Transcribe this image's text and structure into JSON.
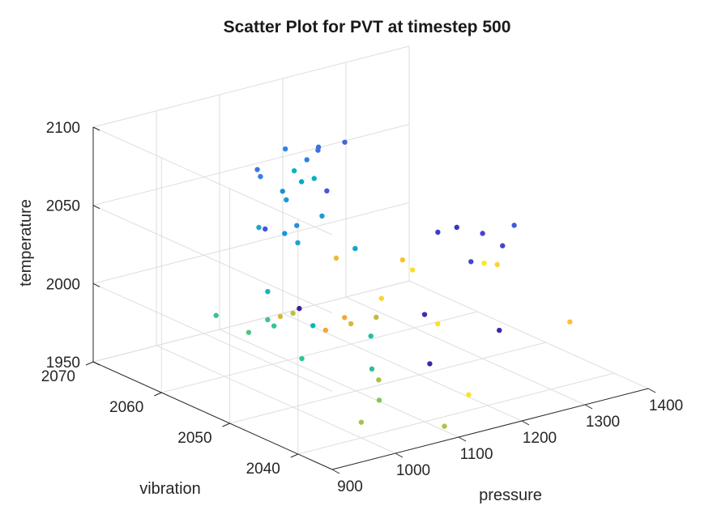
{
  "chart_data": {
    "type": "scatter",
    "projection": "3d",
    "title": "Scatter Plot for PVT at timestep 500",
    "xlabel": "pressure",
    "ylabel": "vibration",
    "zlabel": "temperature",
    "xlim": [
      900,
      1400
    ],
    "ylim": [
      2035,
      2070
    ],
    "zlim": [
      1950,
      2100
    ],
    "x_ticks": [
      "900",
      "1000",
      "1100",
      "1200",
      "1300",
      "1400"
    ],
    "y_ticks": [
      "2040",
      "2050",
      "2060",
      "2070"
    ],
    "z_ticks": [
      "1950",
      "2000",
      "2050",
      "2100"
    ],
    "grid": true,
    "colormap": "parula",
    "points": [
      {
        "x": 1030,
        "y": 2058,
        "z": 2083,
        "color": "#3a77e3"
      },
      {
        "x": 1035,
        "y": 2058,
        "z": 2078,
        "color": "#2e82e6"
      },
      {
        "x": 1150,
        "y": 2065,
        "z": 2070,
        "color": "#2d86e6"
      },
      {
        "x": 1180,
        "y": 2063,
        "z": 2070,
        "color": "#3d6fe0"
      },
      {
        "x": 1190,
        "y": 2060,
        "z": 2080,
        "color": "#4464de"
      },
      {
        "x": 1170,
        "y": 2062,
        "z": 2075,
        "color": "#3b72e0"
      },
      {
        "x": 1130,
        "y": 2060,
        "z": 2075,
        "color": "#2783e3"
      },
      {
        "x": 1070,
        "y": 2058,
        "z": 2065,
        "color": "#1c8ed8"
      },
      {
        "x": 1140,
        "y": 2058,
        "z": 2058,
        "color": "#4c55d9"
      },
      {
        "x": 1000,
        "y": 2055,
        "z": 2055,
        "color": "#23a5c9"
      },
      {
        "x": 1010,
        "y": 2055,
        "z": 2053,
        "color": "#4353dc"
      },
      {
        "x": 1065,
        "y": 2057,
        "z": 2062,
        "color": "#1a9ad5"
      },
      {
        "x": 1100,
        "y": 2058,
        "z": 2068,
        "color": "#0ca7c6"
      },
      {
        "x": 1110,
        "y": 2060,
        "z": 2070,
        "color": "#0bb4bb"
      },
      {
        "x": 1120,
        "y": 2058,
        "z": 2068,
        "color": "#06b3bc"
      },
      {
        "x": 1030,
        "y": 2054,
        "z": 2050,
        "color": "#1d95d9"
      },
      {
        "x": 1060,
        "y": 2055,
        "z": 2050,
        "color": "#2b8de0"
      },
      {
        "x": 1040,
        "y": 2053,
        "z": 2045,
        "color": "#1aa4cd"
      },
      {
        "x": 1100,
        "y": 2055,
        "z": 2052,
        "color": "#1b9cd2"
      },
      {
        "x": 1120,
        "y": 2052,
        "z": 2035,
        "color": "#11a6c9"
      },
      {
        "x": 1090,
        "y": 2052,
        "z": 2032,
        "color": "#eeb935"
      },
      {
        "x": 960,
        "y": 2050,
        "z": 2028,
        "color": "#19b2ba"
      },
      {
        "x": 1010,
        "y": 2050,
        "z": 2012,
        "color": "#38209e"
      },
      {
        "x": 900,
        "y": 2052,
        "z": 2015,
        "color": "#3ec18f"
      },
      {
        "x": 930,
        "y": 2050,
        "z": 2005,
        "color": "#4bc77f"
      },
      {
        "x": 960,
        "y": 2050,
        "z": 2010,
        "color": "#40c386"
      },
      {
        "x": 980,
        "y": 2050,
        "z": 2010,
        "color": "#d7b83d"
      },
      {
        "x": 1000,
        "y": 2050,
        "z": 2010,
        "color": "#c2bf3c"
      },
      {
        "x": 1010,
        "y": 2048,
        "z": 2005,
        "color": "#05b9ae"
      },
      {
        "x": 970,
        "y": 2050,
        "z": 2005,
        "color": "#38c494"
      },
      {
        "x": 1030,
        "y": 2048,
        "z": 2000,
        "color": "#f2a53a"
      },
      {
        "x": 1060,
        "y": 2048,
        "z": 2005,
        "color": "#f3a63a"
      },
      {
        "x": 1070,
        "y": 2048,
        "z": 2000,
        "color": "#d6b73f"
      },
      {
        "x": 960,
        "y": 2045,
        "z": 1995,
        "color": "#2fc39a"
      },
      {
        "x": 1080,
        "y": 2046,
        "z": 1995,
        "color": "#20c0a3"
      },
      {
        "x": 1110,
        "y": 2048,
        "z": 2000,
        "color": "#c4ba3f"
      },
      {
        "x": 1140,
        "y": 2050,
        "z": 2005,
        "color": "#f6d930"
      },
      {
        "x": 1060,
        "y": 2044,
        "z": 1980,
        "color": "#30be98"
      },
      {
        "x": 1060,
        "y": 2043,
        "z": 1975,
        "color": "#a7c142"
      },
      {
        "x": 1050,
        "y": 2042,
        "z": 1965,
        "color": "#80c856"
      },
      {
        "x": 1000,
        "y": 2040,
        "z": 1960,
        "color": "#a1c54a"
      },
      {
        "x": 1130,
        "y": 2042,
        "z": 1980,
        "color": "#362b9f"
      },
      {
        "x": 1165,
        "y": 2046,
        "z": 2000,
        "color": "#3a2fb2"
      },
      {
        "x": 1175,
        "y": 2045,
        "z": 1995,
        "color": "#fbe322"
      },
      {
        "x": 1195,
        "y": 2052,
        "z": 2020,
        "color": "#fac133"
      },
      {
        "x": 1200,
        "y": 2051,
        "z": 2015,
        "color": "#f6df2c"
      },
      {
        "x": 1240,
        "y": 2051,
        "z": 2035,
        "color": "#3f3bc6"
      },
      {
        "x": 1270,
        "y": 2051,
        "z": 2035,
        "color": "#3a36be"
      },
      {
        "x": 1260,
        "y": 2048,
        "z": 2020,
        "color": "#4149cf"
      },
      {
        "x": 1270,
        "y": 2047,
        "z": 2020,
        "color": "#fce726"
      },
      {
        "x": 1280,
        "y": 2046,
        "z": 2020,
        "color": "#f8d52e"
      },
      {
        "x": 1300,
        "y": 2050,
        "z": 2030,
        "color": "#4942d4"
      },
      {
        "x": 1310,
        "y": 2048,
        "z": 2025,
        "color": "#4245cf"
      },
      {
        "x": 1350,
        "y": 2050,
        "z": 2030,
        "color": "#3e5ed9"
      },
      {
        "x": 1330,
        "y": 2040,
        "z": 1990,
        "color": "#fbc135"
      },
      {
        "x": 1240,
        "y": 2042,
        "z": 1990,
        "color": "#3a2ba7"
      },
      {
        "x": 1170,
        "y": 2040,
        "z": 1960,
        "color": "#fbe322"
      },
      {
        "x": 1110,
        "y": 2038,
        "z": 1950,
        "color": "#aec345"
      }
    ]
  }
}
